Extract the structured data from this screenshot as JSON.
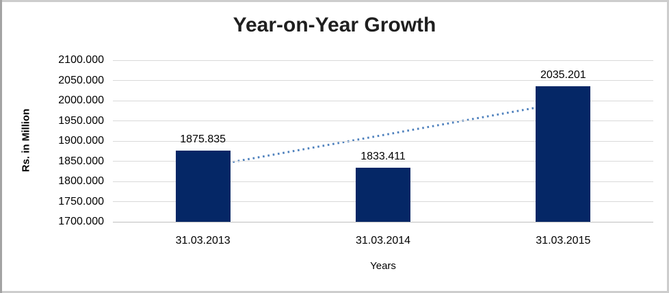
{
  "chart_data": {
    "type": "bar",
    "title": "Year-on-Year Growth",
    "xlabel": "Years",
    "ylabel": "Rs. in Million",
    "categories": [
      "31.03.2013",
      "31.03.2014",
      "31.03.2015"
    ],
    "values": [
      1875.835,
      1833.411,
      2035.201
    ],
    "data_labels": [
      "1875.835",
      "1833.411",
      "2035.201"
    ],
    "ylim": [
      1700,
      2100
    ],
    "ytick_step": 50,
    "ytick_labels": [
      "1700.000",
      "1750.000",
      "1800.000",
      "1850.000",
      "1900.000",
      "1950.000",
      "2000.000",
      "2050.000",
      "2100.000"
    ],
    "grid": true,
    "legend_position": "none",
    "bar_color": "#052766",
    "trendline": {
      "style": "dotted",
      "color": "#4f81bd",
      "fit": "linear",
      "values": [
        1835.129,
        1914.816,
        1994.503
      ]
    }
  }
}
